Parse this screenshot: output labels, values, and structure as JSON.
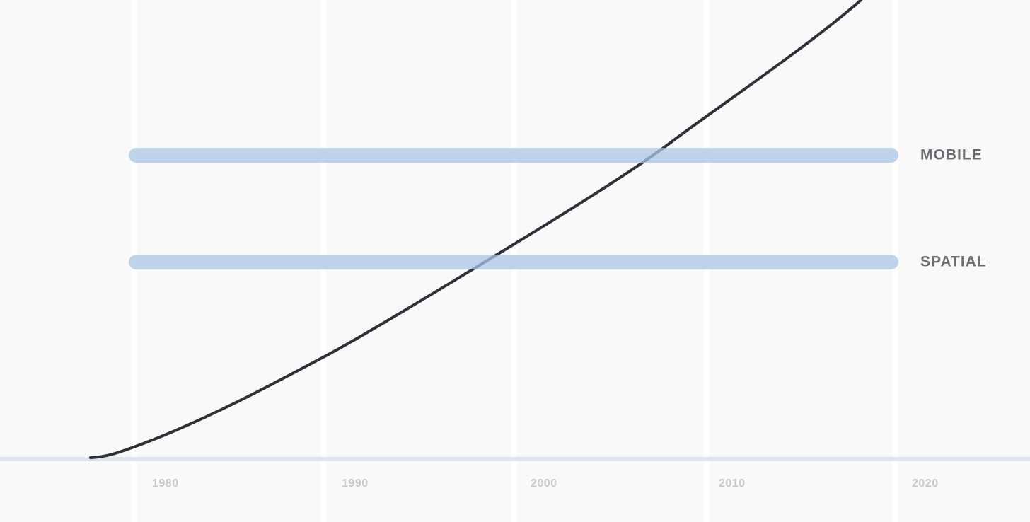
{
  "axis": {
    "labels": [
      "1980",
      "1990",
      "2000",
      "2010",
      "2020"
    ]
  },
  "bands": [
    {
      "label": "MOBILE"
    },
    {
      "label": "SPATIAL"
    }
  ]
}
